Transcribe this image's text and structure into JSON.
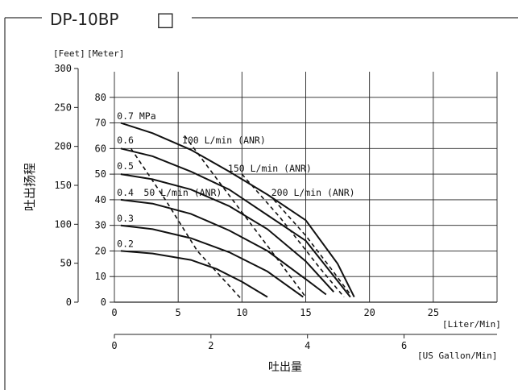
{
  "header": {
    "title": "DP-10BP",
    "title_box_glyph": "□"
  },
  "axis_labels": {
    "y_units_feet": "[Feet]",
    "y_units_meter": "[Meter]",
    "y_title": "吐出扬程",
    "x_title": "吐出量",
    "x_unit_primary": "[Liter/Min]",
    "x_unit_secondary": "[US Gallon/Min]"
  },
  "chart_data": {
    "type": "line",
    "title": "DP-10BP",
    "xlabel": "吐出量",
    "ylabel": "吐出扬程",
    "xlim": [
      0,
      30
    ],
    "ylim": [
      0,
      90
    ],
    "x_ticks_liter": [
      "0",
      "5",
      "10",
      "15",
      "20",
      "25"
    ],
    "x_ticks_gallon": [
      "0",
      "2",
      "4",
      "6"
    ],
    "y_ticks_meter": [
      "0",
      "10",
      "20",
      "30",
      "40",
      "50",
      "60",
      "70",
      "80"
    ],
    "y_ticks_feet": [
      "0",
      "50",
      "100",
      "150",
      "200",
      "250",
      "300"
    ],
    "grid": true,
    "series": [
      {
        "name": "0.7 MPa",
        "style": "solid",
        "x": [
          0.5,
          3,
          6,
          9,
          12,
          15,
          17.5,
          18.8
        ],
        "y": [
          70,
          66,
          59.5,
          51,
          42,
          32,
          15,
          2
        ]
      },
      {
        "name": "0.6",
        "style": "solid",
        "x": [
          0.5,
          3,
          6,
          9,
          12,
          15,
          18.5
        ],
        "y": [
          60,
          57,
          51,
          44,
          34,
          24,
          2
        ]
      },
      {
        "name": "0.5",
        "style": "solid",
        "x": [
          0.5,
          3,
          6,
          9,
          12,
          15,
          17.2
        ],
        "y": [
          50,
          48,
          44,
          37.5,
          28.5,
          16,
          4
        ]
      },
      {
        "name": "0.4",
        "style": "solid",
        "x": [
          0.5,
          3,
          6,
          9,
          12,
          15,
          16.6
        ],
        "y": [
          40,
          38.5,
          34.5,
          28,
          20,
          9,
          3
        ]
      },
      {
        "name": "0.3",
        "style": "solid",
        "x": [
          0.5,
          3,
          6,
          9,
          12,
          14.8
        ],
        "y": [
          30,
          28.5,
          25,
          19.5,
          12,
          2
        ]
      },
      {
        "name": "0.2",
        "style": "solid",
        "x": [
          0.5,
          3,
          6,
          8,
          10,
          12
        ],
        "y": [
          20,
          19,
          16.5,
          13,
          8,
          2
        ]
      },
      {
        "name": "50 L/min (ANR)",
        "style": "dashed",
        "x": [
          1.3,
          4,
          6.5,
          10
        ],
        "y": [
          60,
          40,
          20,
          1
        ]
      },
      {
        "name": "100 L/min (ANR)",
        "style": "dashed",
        "x": [
          5.5,
          8.5,
          12,
          15
        ],
        "y": [
          65,
          45,
          22,
          2
        ]
      },
      {
        "name": "150 L/min (ANR)",
        "style": "dashed",
        "x": [
          10,
          13,
          16,
          18
        ],
        "y": [
          50,
          33,
          14,
          2
        ]
      },
      {
        "name": "200 L/min (ANR)",
        "style": "dashed",
        "x": [
          12.5,
          15,
          17,
          18.5
        ],
        "y": [
          40,
          26,
          13,
          3
        ]
      }
    ]
  }
}
